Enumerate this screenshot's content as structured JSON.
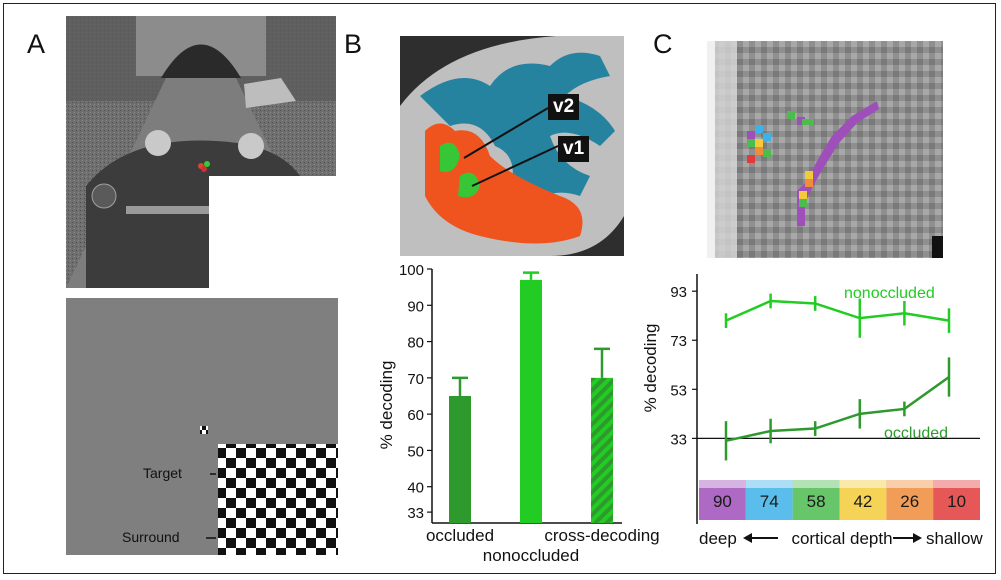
{
  "panels": {
    "a": "A",
    "b": "B",
    "c": "C"
  },
  "panel_a": {
    "target_label": "Target",
    "surround_label": "Surround"
  },
  "panel_b": {
    "roi_v2": "v2",
    "roi_v1": "v1"
  },
  "colors": {
    "dark_green": "#2e9a2e",
    "light_green": "#22cc22",
    "cortex_red": "#f0541e",
    "cortex_blue": "#1d7f9e",
    "depth_scale": [
      "#9f4fb9",
      "#3db2e8",
      "#4cbc4f",
      "#f2cb38",
      "#f08c3a",
      "#e23a3a"
    ]
  },
  "chart_data": [
    {
      "type": "bar",
      "title": "",
      "xlabel": "",
      "ylabel": "% decoding",
      "ylim": [
        30,
        100
      ],
      "yticks": [
        33,
        40,
        50,
        60,
        70,
        80,
        90,
        100
      ],
      "categories": [
        "occluded",
        "nonoccluded",
        "cross-decoding"
      ],
      "values": [
        65,
        97,
        70
      ],
      "error_upper": [
        70,
        99,
        78
      ],
      "bar_colors": [
        "#2e9a2e",
        "#22cc22",
        "hatched-green"
      ]
    },
    {
      "type": "line",
      "title": "",
      "xlabel": "cortical depth",
      "ylabel": "% decoding",
      "x_start_label": "deep",
      "x_end_label": "shallow",
      "ylim": [
        25,
        100
      ],
      "yticks": [
        33,
        53,
        73,
        93
      ],
      "chance_level": 33,
      "x": [
        90,
        74,
        58,
        42,
        26,
        10
      ],
      "series": [
        {
          "name": "nonoccluded",
          "values": [
            81,
            89,
            88,
            82,
            84,
            81
          ],
          "error": [
            3,
            3,
            3,
            8,
            5,
            5
          ]
        },
        {
          "name": "occluded",
          "values": [
            32,
            36,
            37,
            43,
            45,
            58
          ],
          "error": [
            8,
            5,
            3,
            6,
            3,
            8
          ]
        }
      ]
    }
  ]
}
